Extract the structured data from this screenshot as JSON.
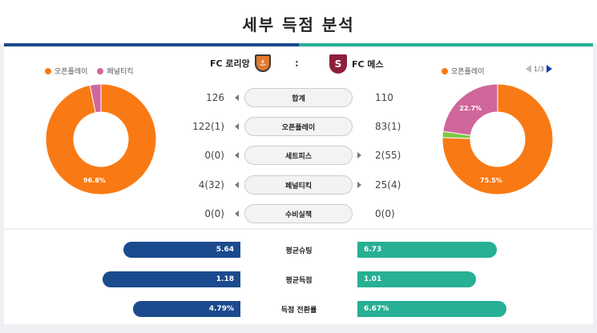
{
  "page_title": "세부 득점 분석",
  "home_team": {
    "name": "FC 로리앙",
    "color": "#e3782a"
  },
  "away_team": {
    "name": "FC 메스",
    "color": "#8e1f3c",
    "logo_text": "S"
  },
  "separator": ":",
  "legend_left": [
    {
      "label": "오픈플레이",
      "color": "#f97a14"
    },
    {
      "label": "페널티킥",
      "color": "#d0679a"
    }
  ],
  "legend_right": [
    {
      "label": "오픈플레이",
      "color": "#f97a14"
    }
  ],
  "pager": {
    "text": "1/3"
  },
  "chart_data": [
    {
      "type": "pie",
      "team": "FC 로리앙",
      "slices": [
        {
          "name": "오픈플레이",
          "value": 96.8,
          "label": "96.8%",
          "color": "#f97a14"
        },
        {
          "name": "페널티킥",
          "value": 3.2,
          "label": "",
          "color": "#d0679a"
        }
      ]
    },
    {
      "type": "pie",
      "team": "FC 메스",
      "slices": [
        {
          "name": "오픈플레이",
          "value": 75.5,
          "label": "75.5%",
          "color": "#f97a14"
        },
        {
          "name": "세트피스",
          "value": 1.8,
          "label": "",
          "color": "#7ac943"
        },
        {
          "name": "페널티킥",
          "value": 22.7,
          "label": "22.7%",
          "color": "#d0679a"
        }
      ]
    }
  ],
  "stats": [
    {
      "label": "합계",
      "home": "126",
      "away": "110"
    },
    {
      "label": "오픈플레이",
      "home": "122(1)",
      "away": "83(1)"
    },
    {
      "label": "세트피스",
      "home": "0(0)",
      "away": "2(55)"
    },
    {
      "label": "페널티킥",
      "home": "4(32)",
      "away": "25(4)"
    },
    {
      "label": "수비실책",
      "home": "0(0)",
      "away": "0(0)"
    }
  ],
  "comparisons": [
    {
      "label": "평균슈팅",
      "home": "5.64",
      "away": "6.73",
      "home_value": 5.64,
      "away_value": 6.73
    },
    {
      "label": "평균득점",
      "home": "1.18",
      "away": "1.01",
      "home_value": 1.18,
      "away_value": 1.01
    },
    {
      "label": "득점 전환률",
      "home": "4.79%",
      "away": "6.67%",
      "home_value": 4.79,
      "away_value": 6.67
    }
  ],
  "colors": {
    "home_bar": "#1b4a8e",
    "away_bar": "#27b093"
  }
}
